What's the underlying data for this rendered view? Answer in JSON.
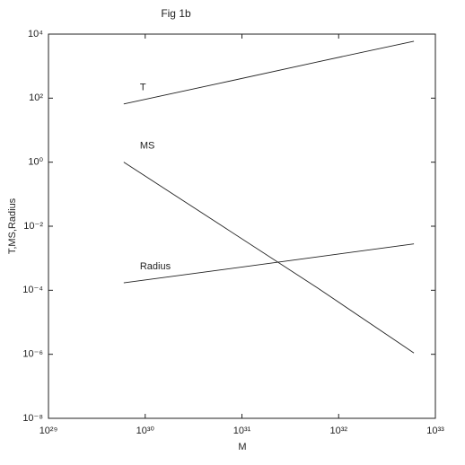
{
  "chart_data": {
    "type": "line",
    "title": "Fig 1b",
    "xlabel": "M",
    "ylabel": "T,MS,Radius",
    "xscale": "log",
    "yscale": "log",
    "x": [
      6e+29,
      6e+30,
      6e+31,
      6e+32
    ],
    "series": [
      {
        "name": "T",
        "color": "#222222",
        "values": [
          66,
          295,
          1350,
          6000
        ]
      },
      {
        "name": "MS",
        "color": "#222222",
        "values": [
          1,
          0.011,
          0.00012,
          1.1e-06
        ]
      },
      {
        "name": "Radius",
        "color": "#222222",
        "values": [
          0.00017,
          0.00043,
          0.0011,
          0.0028
        ]
      }
    ],
    "xlim": [
      1e+29,
      1e+33
    ],
    "xticks": [
      {
        "value": 1e+29,
        "label": "10²⁹"
      },
      {
        "value": 1e+30,
        "label": "10³⁰"
      },
      {
        "value": 1e+31,
        "label": "10³¹"
      },
      {
        "value": 1e+32,
        "label": "10³²"
      },
      {
        "value": 1e+33,
        "label": "10³³"
      }
    ],
    "ylim": [
      1e-08,
      10000
    ],
    "yticks": [
      {
        "value": 1e-08,
        "label": "10⁻⁸"
      },
      {
        "value": 1e-06,
        "label": "10⁻⁶"
      },
      {
        "value": 0.0001,
        "label": "10⁻⁴"
      },
      {
        "value": 0.01,
        "label": "10⁻²"
      },
      {
        "value": 1,
        "label": "10⁰"
      },
      {
        "value": 100,
        "label": "10²"
      },
      {
        "value": 10000,
        "label": "10⁴"
      }
    ]
  }
}
